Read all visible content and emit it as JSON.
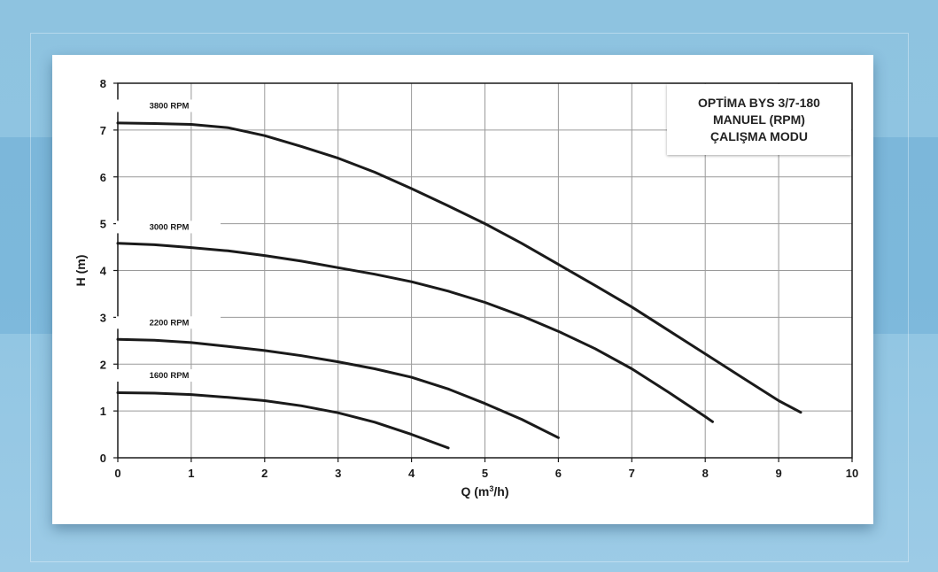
{
  "colors": {
    "background": "#8ec3e0",
    "card": "#ffffff",
    "curve": "#1a1a1a",
    "grid": "#9a9a9a"
  },
  "chart_data": {
    "type": "line",
    "title_lines": [
      "OPTİMA BYS 3/7-180",
      "MANUEL (RPM)",
      "ÇALIŞMA MODU"
    ],
    "xlabel_main": "Q (m",
    "xlabel_sup": "3",
    "xlabel_tail": "/h)",
    "ylabel": "H (m)",
    "xlim": [
      0,
      10
    ],
    "ylim": [
      0,
      8
    ],
    "xticks": [
      "0",
      "1",
      "2",
      "3",
      "4",
      "5",
      "6",
      "7",
      "8",
      "9",
      "10"
    ],
    "yticks": [
      "0",
      "1",
      "2",
      "3",
      "4",
      "5",
      "6",
      "7",
      "8"
    ],
    "grid": true,
    "series": [
      {
        "name": "3800 RPM",
        "x": [
          0,
          0.5,
          1,
          1.5,
          2,
          2.5,
          3,
          3.5,
          4,
          4.5,
          5,
          5.5,
          6,
          6.5,
          7,
          7.5,
          8,
          8.5,
          9,
          9.3
        ],
        "y": [
          7.15,
          7.14,
          7.12,
          7.05,
          6.88,
          6.65,
          6.4,
          6.1,
          5.75,
          5.38,
          5.0,
          4.58,
          4.13,
          3.68,
          3.22,
          2.72,
          2.22,
          1.72,
          1.22,
          0.97
        ]
      },
      {
        "name": "3000 RPM",
        "x": [
          0,
          0.5,
          1,
          1.5,
          2,
          2.5,
          3,
          3.5,
          4,
          4.5,
          5,
          5.5,
          6,
          6.5,
          7,
          7.5,
          8,
          8.1
        ],
        "y": [
          4.58,
          4.55,
          4.49,
          4.42,
          4.32,
          4.2,
          4.06,
          3.92,
          3.76,
          3.56,
          3.32,
          3.03,
          2.7,
          2.33,
          1.9,
          1.4,
          0.88,
          0.77
        ]
      },
      {
        "name": "2200 RPM",
        "x": [
          0,
          0.5,
          1,
          1.5,
          2,
          2.5,
          3,
          3.5,
          4,
          4.5,
          5,
          5.5,
          6
        ],
        "y": [
          2.53,
          2.51,
          2.46,
          2.38,
          2.29,
          2.18,
          2.05,
          1.9,
          1.72,
          1.47,
          1.16,
          0.82,
          0.43
        ]
      },
      {
        "name": "1600 RPM",
        "x": [
          0,
          0.5,
          1,
          1.5,
          2,
          2.5,
          3,
          3.5,
          4,
          4.5
        ],
        "y": [
          1.39,
          1.38,
          1.35,
          1.29,
          1.22,
          1.11,
          0.96,
          0.76,
          0.5,
          0.21
        ]
      }
    ],
    "label_positions": "above left of each curve",
    "legend": "none"
  }
}
